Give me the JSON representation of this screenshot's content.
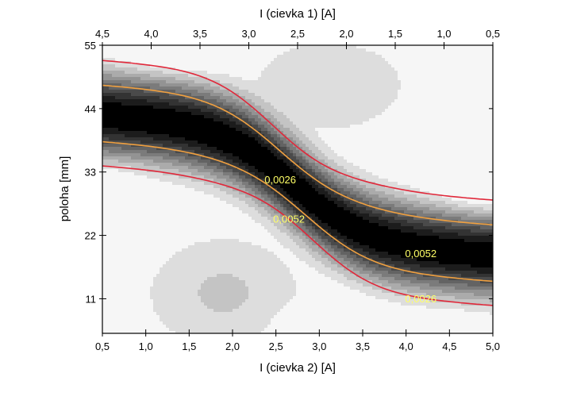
{
  "chart_data": {
    "type": "contour",
    "xlabel": "I (cievka 2) [A]",
    "x2label": "I (cievka 1) [A]",
    "ylabel": "poloha [mm]",
    "xlim": [
      0.5,
      5.0
    ],
    "x2lim": [
      4.5,
      0.5
    ],
    "ylim": [
      5,
      55
    ],
    "x_ticks": [
      "0,5",
      "1,0",
      "1,5",
      "2,0",
      "2,5",
      "3,0",
      "3,5",
      "4,0",
      "4,5",
      "5,0"
    ],
    "x2_ticks": [
      "4,5",
      "4,0",
      "3,5",
      "3,0",
      "2,5",
      "2,0",
      "1,5",
      "1,0",
      "0,5"
    ],
    "y_ticks": [
      "11",
      "22",
      "33",
      "44",
      "55"
    ],
    "colormap": [
      "#000000",
      "#1c1c1c",
      "#333333",
      "#4a4a4a",
      "#636363",
      "#7b7b7b",
      "#939393",
      "#ababab",
      "#c4c4c4",
      "#dddddd",
      "#f6f6f6"
    ],
    "highlight_contours": [
      {
        "level": "0,0026",
        "color": "#e0283a"
      },
      {
        "level": "0,0052",
        "color": "#f0a040"
      }
    ],
    "contour_labels": [
      {
        "text": "0,0026",
        "x": 2.55,
        "y": 31.0
      },
      {
        "text": "0,0052",
        "x": 2.65,
        "y": 24.2
      },
      {
        "text": "0,0052",
        "x": 4.17,
        "y": 18.2
      },
      {
        "text": "0,0026",
        "x": 4.17,
        "y": 10.4
      }
    ],
    "grid": false
  }
}
